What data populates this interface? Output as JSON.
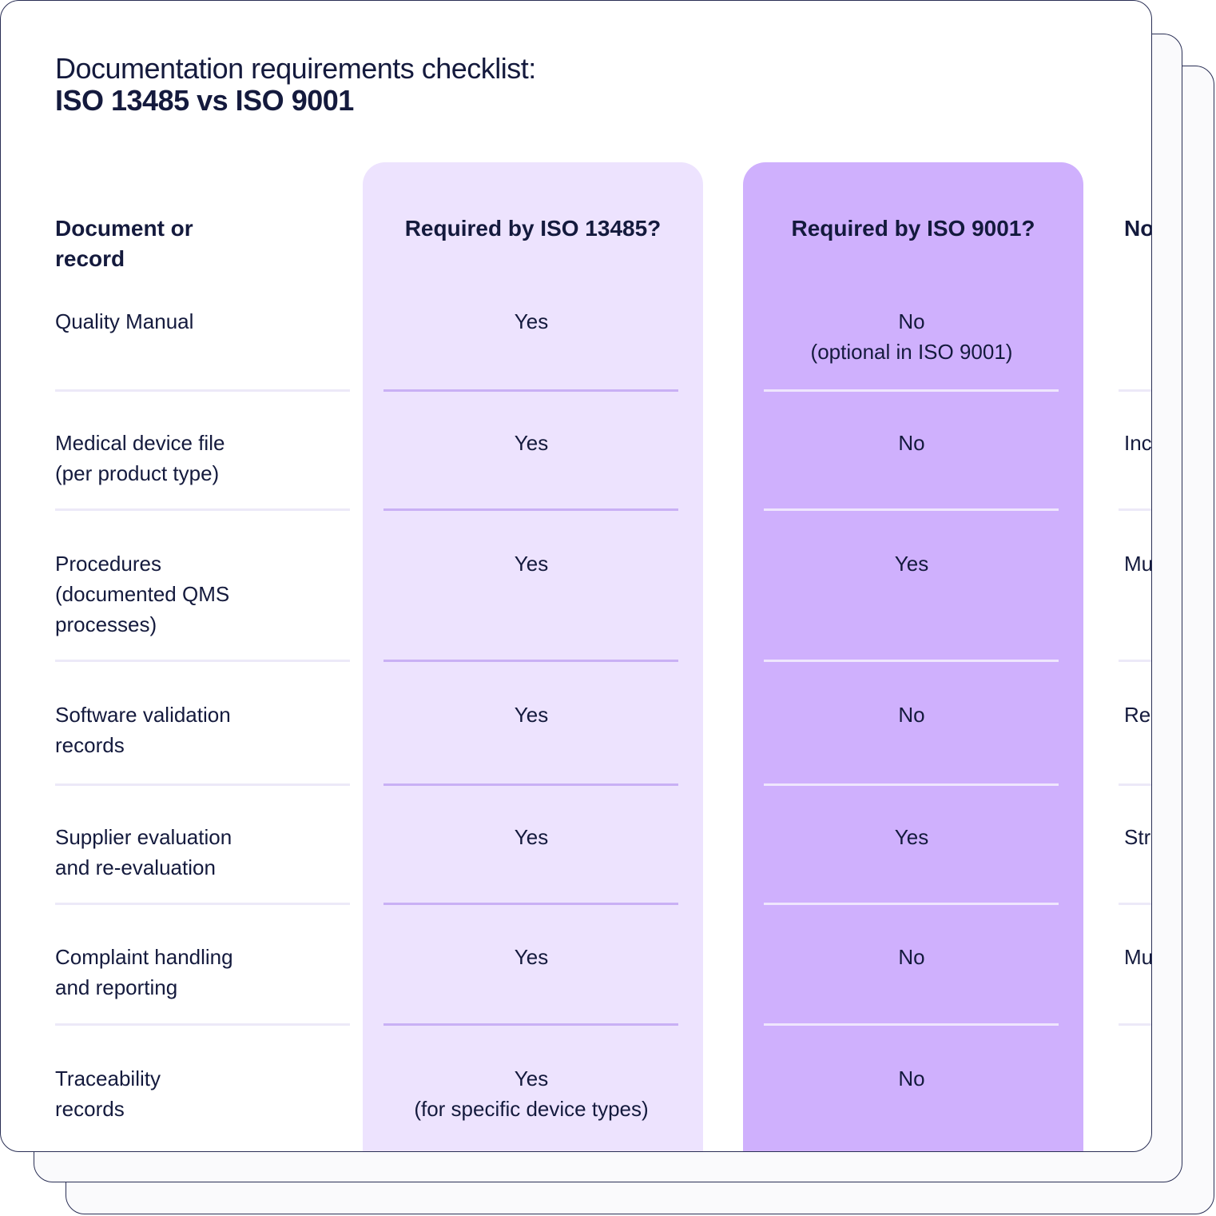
{
  "title": {
    "line1": "Documentation requirements checklist:",
    "line2": "ISO 13485 vs ISO 9001"
  },
  "columns": {
    "doc": "Document or record",
    "iso13485": "Required by ISO 13485?",
    "iso9001": "Required by ISO 9001?",
    "notes": "No"
  },
  "rows": [
    {
      "doc": "Quality Manual",
      "iso13485": "Yes",
      "iso13485_note": "",
      "iso9001": "No",
      "iso9001_note": "(optional in ISO 9001)",
      "notes": ""
    },
    {
      "doc": "Medical device file (per product type)",
      "iso13485": "Yes",
      "iso13485_note": "",
      "iso9001": "No",
      "iso9001_note": "",
      "notes": "Inc"
    },
    {
      "doc": "Procedures (documented QMS processes)",
      "iso13485": "Yes",
      "iso13485_note": "",
      "iso9001": "Yes",
      "iso9001_note": "",
      "notes": "Mu"
    },
    {
      "doc": "Software validation records",
      "iso13485": "Yes",
      "iso13485_note": "",
      "iso9001": "No",
      "iso9001_note": "",
      "notes": "Re"
    },
    {
      "doc": "Supplier evaluation and re-evaluation",
      "iso13485": "Yes",
      "iso13485_note": "",
      "iso9001": "Yes",
      "iso9001_note": "",
      "notes": "Str"
    },
    {
      "doc": "Complaint handling and reporting",
      "iso13485": "Yes",
      "iso13485_note": "",
      "iso9001": "No",
      "iso9001_note": "",
      "notes": "Mu"
    },
    {
      "doc": "Traceability records",
      "iso13485": "Yes",
      "iso13485_note": "(for specific device types)",
      "iso9001": "No",
      "iso9001_note": "",
      "notes": ""
    }
  ],
  "colors": {
    "text": "#141a3d",
    "col_13485_bg": "#ede3fe",
    "col_9001_bg": "#cfb0fd",
    "card_border": "#2a2f55"
  }
}
